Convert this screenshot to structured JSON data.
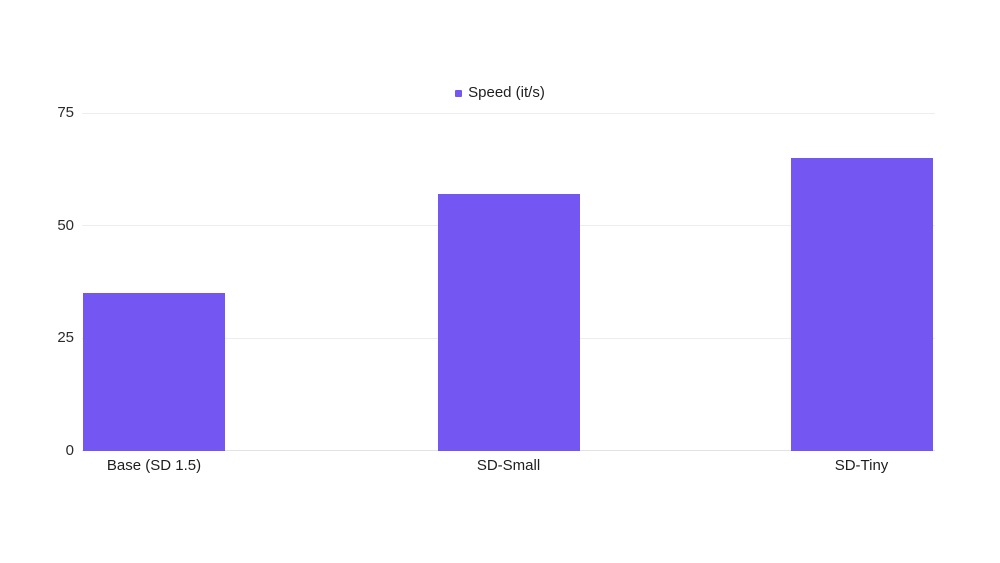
{
  "chart_data": {
    "type": "bar",
    "categories": [
      "Base (SD 1.5)",
      "SD-Small",
      "SD-Tiny"
    ],
    "series": [
      {
        "name": "Speed (it/s)",
        "values": [
          35,
          57,
          65
        ]
      }
    ],
    "yticks": [
      0,
      25,
      50,
      75
    ],
    "ylim": [
      0,
      75
    ],
    "xlabel": "",
    "ylabel": "",
    "grid": true,
    "legend_position": "top-center",
    "colors": {
      "bar": "#7456F2",
      "gridline": "#ededed",
      "zero_line": "#e2e2e2",
      "tick_text": "#2b2b2b",
      "label_text": "#1e1e1e",
      "background": "#ffffff"
    }
  }
}
